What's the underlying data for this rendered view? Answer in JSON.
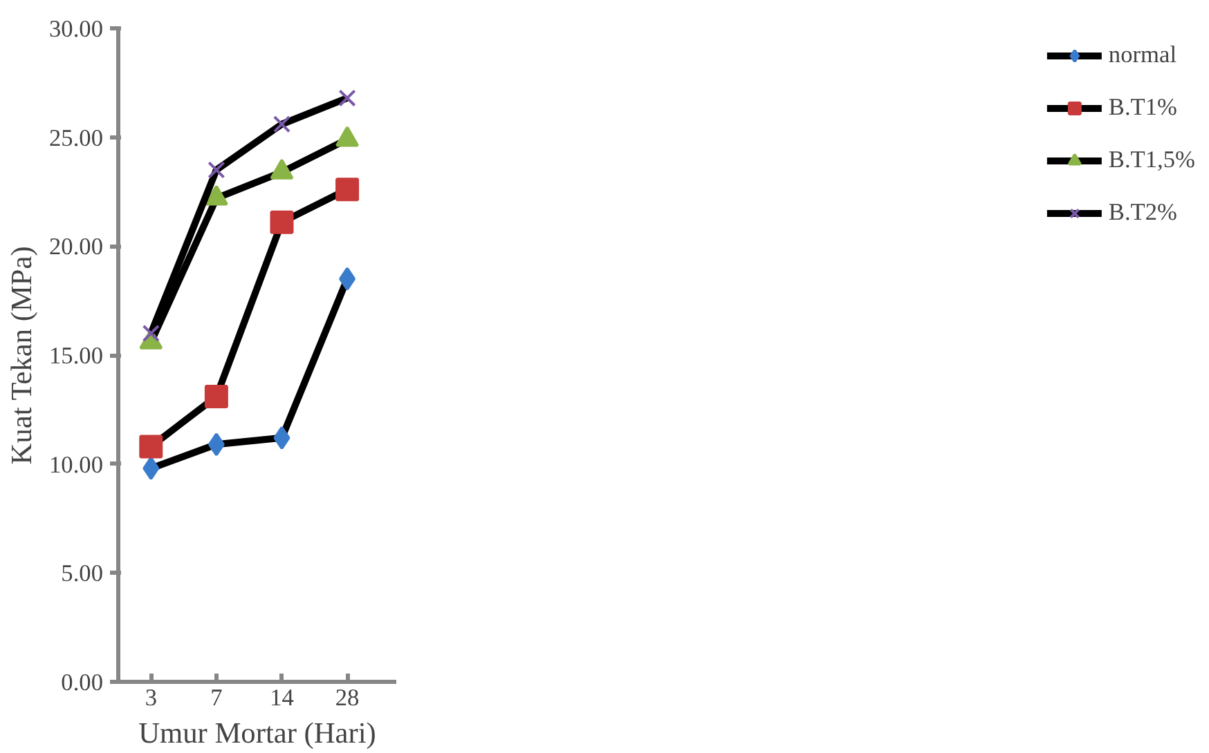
{
  "chart_data": {
    "type": "line",
    "xlabel": "Umur Mortar (Hari)",
    "ylabel": "Kuat Tekan (MPa)",
    "categories": [
      "3",
      "7",
      "14",
      "28"
    ],
    "ylim": [
      0,
      30
    ],
    "yticks": [
      {
        "value": 0,
        "label": "0.00"
      },
      {
        "value": 5,
        "label": "5.00"
      },
      {
        "value": 10,
        "label": "10.00"
      },
      {
        "value": 15,
        "label": "15.00"
      },
      {
        "value": 20,
        "label": "20.00"
      },
      {
        "value": 25,
        "label": "25.00"
      },
      {
        "value": 30,
        "label": "30.00"
      }
    ],
    "grid": false,
    "legend": "right",
    "line_style": "solid",
    "series": [
      {
        "name": "normal",
        "color": "#3a7ccc",
        "marker": "diamond",
        "values": [
          9.8,
          10.9,
          11.2,
          18.5
        ]
      },
      {
        "name": "B.T1%",
        "color": "#c83a3a",
        "marker": "square",
        "values": [
          10.8,
          13.1,
          21.1,
          22.6
        ]
      },
      {
        "name": "B.T1,5%",
        "color": "#8ab446",
        "marker": "triangle",
        "values": [
          15.6,
          22.2,
          23.4,
          24.9
        ]
      },
      {
        "name": "B.T2%",
        "color": "#7a58a8",
        "marker": "cross",
        "values": [
          16.0,
          23.5,
          25.6,
          26.8
        ]
      }
    ]
  }
}
